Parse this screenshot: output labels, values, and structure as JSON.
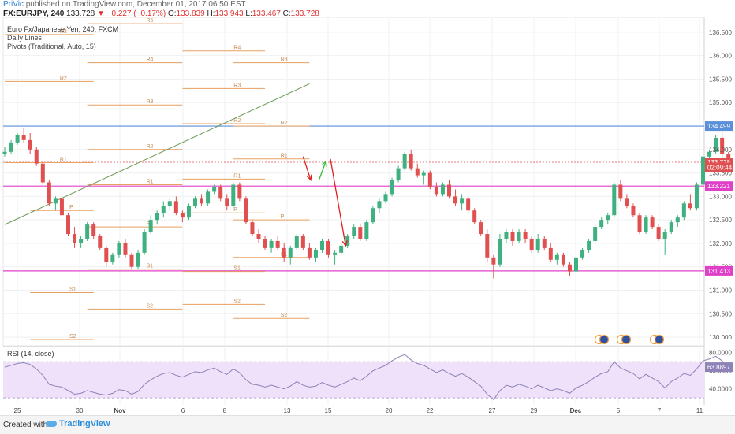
{
  "header": {
    "author": "PriVic",
    "published_text": "published on TradingView.com, December 01, 2017 06:50 EST"
  },
  "quote": {
    "symbol": "FX:EURJPY, 240",
    "last": "133.728",
    "change": "▼ −0.227 (−0.17%)",
    "open_label": "O:",
    "open": "133.839",
    "high_label": "H:",
    "high": "133.943",
    "low_label": "L:",
    "low": "133.467",
    "close_label": "C:",
    "close": "133.728"
  },
  "legend": {
    "title": "Euro Fx/Japanese Yen, 240, FXCM",
    "line2": "Daily Lines",
    "line3": "Pivots (Traditional, Auto, 15)"
  },
  "footer": {
    "created_with": "Created with",
    "brand": "TradingView"
  },
  "colors": {
    "up": "#3fb07f",
    "down": "#e05050",
    "pivot": "#e8a060",
    "trendline": "#6e9a55",
    "blue_level": "#5b8fd9",
    "magenta": "#e040c8",
    "red_arrow": "#dd2020",
    "green_arrow": "#33bb33",
    "rsi": "#8a82b4",
    "rsi_band": "#f0e1fb"
  },
  "chart_data": {
    "type": "candlestick",
    "title": "Euro Fx/Japanese Yen, 240, FXCM",
    "y_range": [
      129.85,
      136.75
    ],
    "y_ticks": [
      "136.500",
      "136.000",
      "135.500",
      "135.000",
      "134.500",
      "134.000",
      "133.500",
      "133.000",
      "132.500",
      "132.000",
      "131.500",
      "131.000",
      "130.500",
      "130.000"
    ],
    "x_tick_labels": [
      "25",
      "30",
      "Nov",
      "6",
      "8",
      "13",
      "15",
      "20",
      "22",
      "27",
      "29",
      "Dec",
      "5",
      "7",
      "11"
    ],
    "price_labels": [
      {
        "value": 134.499,
        "text": "134.499",
        "color": "#5b8fd9"
      },
      {
        "value": 133.728,
        "text": "133.728",
        "color": "#e05050"
      },
      {
        "value": 133.62,
        "text": "02:09:44",
        "color": "#e05050"
      },
      {
        "value": 133.221,
        "text": "133.221",
        "color": "#e040c8"
      },
      {
        "value": 131.413,
        "text": "131.413",
        "color": "#e040c8"
      }
    ],
    "horizontal_levels": [
      {
        "value": 134.499,
        "color": "#5b8fd9"
      },
      {
        "value": 133.221,
        "color": "#e040c8"
      },
      {
        "value": 131.413,
        "color": "#e040c8"
      },
      {
        "value": 133.728,
        "color": "#e05050"
      }
    ],
    "pivot_segments": [
      {
        "label": "R3",
        "value": 136.45,
        "x0": 0.0,
        "x1": 14.0
      },
      {
        "label": "R2",
        "value": 135.45,
        "x0": 0.0,
        "x1": 14.0
      },
      {
        "label": "R1",
        "value": 133.72,
        "x0": 0.0,
        "x1": 14.0
      },
      {
        "label": "P",
        "value": 132.7,
        "x0": 4.0,
        "x1": 14.0
      },
      {
        "label": "S1",
        "value": 130.95,
        "x0": 4.0,
        "x1": 14.0
      },
      {
        "label": "S2",
        "value": 129.95,
        "x0": 4.0,
        "x1": 14.0
      },
      {
        "label": "R5",
        "value": 136.68,
        "x0": 13.0,
        "x1": 28.0
      },
      {
        "label": "R4",
        "value": 135.85,
        "x0": 13.0,
        "x1": 28.0
      },
      {
        "label": "R3",
        "value": 134.95,
        "x0": 13.0,
        "x1": 28.0
      },
      {
        "label": "R2",
        "value": 134.0,
        "x0": 13.0,
        "x1": 28.0
      },
      {
        "label": "R1",
        "value": 133.25,
        "x0": 13.0,
        "x1": 28.0
      },
      {
        "label": "P",
        "value": 132.35,
        "x0": 13.0,
        "x1": 28.0
      },
      {
        "label": "S1",
        "value": 131.45,
        "x0": 13.0,
        "x1": 28.0
      },
      {
        "label": "S2",
        "value": 130.6,
        "x0": 13.0,
        "x1": 28.0
      },
      {
        "label": "R5",
        "value": 136.95,
        "x0": 28.0,
        "x1": 41.0
      },
      {
        "label": "R4",
        "value": 136.1,
        "x0": 28.0,
        "x1": 41.0
      },
      {
        "label": "R3",
        "value": 135.3,
        "x0": 28.0,
        "x1": 41.0
      },
      {
        "label": "R2",
        "value": 134.55,
        "x0": 28.0,
        "x1": 41.0
      },
      {
        "label": "R1",
        "value": 133.37,
        "x0": 28.0,
        "x1": 41.0
      },
      {
        "label": "P",
        "value": 132.65,
        "x0": 28.0,
        "x1": 41.0
      },
      {
        "label": "S1",
        "value": 131.4,
        "x0": 28.0,
        "x1": 41.0
      },
      {
        "label": "S2",
        "value": 130.7,
        "x0": 28.0,
        "x1": 41.0
      },
      {
        "label": "R3",
        "value": 135.85,
        "x0": 36.0,
        "x1": 48.0
      },
      {
        "label": "R2",
        "value": 134.5,
        "x0": 36.0,
        "x1": 48.0
      },
      {
        "label": "R1",
        "value": 133.8,
        "x0": 36.0,
        "x1": 48.0
      },
      {
        "label": "P",
        "value": 132.5,
        "x0": 36.0,
        "x1": 48.0
      },
      {
        "label": "S1",
        "value": 131.7,
        "x0": 36.0,
        "x1": 48.0
      },
      {
        "label": "S2",
        "value": 130.4,
        "x0": 36.0,
        "x1": 48.0
      }
    ],
    "trendline": {
      "x0": 0.0,
      "y0": 132.4,
      "x1": 48.0,
      "y1": 135.4
    },
    "arrows": [
      {
        "x0": 47.0,
        "y0": 133.85,
        "x1": 48.2,
        "y1": 133.35,
        "color": "#dd2020"
      },
      {
        "x0": 49.5,
        "y0": 133.35,
        "x1": 50.6,
        "y1": 133.75,
        "color": "#33bb33"
      },
      {
        "x0": 51.3,
        "y0": 133.8,
        "x1": 53.7,
        "y1": 131.95,
        "color": "#dd2020"
      }
    ],
    "candles": [
      [
        133.9,
        134.05,
        133.85,
        133.95
      ],
      [
        133.95,
        134.2,
        133.9,
        134.15
      ],
      [
        134.15,
        134.35,
        134.1,
        134.3
      ],
      [
        134.3,
        134.45,
        134.15,
        134.2
      ],
      [
        134.2,
        134.35,
        133.9,
        134.0
      ],
      [
        134.0,
        134.05,
        133.65,
        133.7
      ],
      [
        133.7,
        133.75,
        133.25,
        133.3
      ],
      [
        133.3,
        133.35,
        132.8,
        132.85
      ],
      [
        132.85,
        133.0,
        132.7,
        132.95
      ],
      [
        132.95,
        133.0,
        132.55,
        132.6
      ],
      [
        132.6,
        132.65,
        132.15,
        132.2
      ],
      [
        132.2,
        132.35,
        131.9,
        132.0
      ],
      [
        132.0,
        132.15,
        131.9,
        132.1
      ],
      [
        132.1,
        132.45,
        132.05,
        132.4
      ],
      [
        132.4,
        132.45,
        132.1,
        132.15
      ],
      [
        132.15,
        132.2,
        131.85,
        131.9
      ],
      [
        131.9,
        131.95,
        131.5,
        131.6
      ],
      [
        131.6,
        131.8,
        131.55,
        131.75
      ],
      [
        131.75,
        132.05,
        131.7,
        132.0
      ],
      [
        132.0,
        132.1,
        131.7,
        131.75
      ],
      [
        131.75,
        131.8,
        131.45,
        131.5
      ],
      [
        131.5,
        131.85,
        131.45,
        131.8
      ],
      [
        131.8,
        132.3,
        131.75,
        132.25
      ],
      [
        132.25,
        132.6,
        132.2,
        132.5
      ],
      [
        132.5,
        132.7,
        132.4,
        132.65
      ],
      [
        132.65,
        132.9,
        132.55,
        132.8
      ],
      [
        132.8,
        132.95,
        132.7,
        132.9
      ],
      [
        132.9,
        133.0,
        132.6,
        132.65
      ],
      [
        132.65,
        132.7,
        132.45,
        132.55
      ],
      [
        132.55,
        132.85,
        132.5,
        132.8
      ],
      [
        132.8,
        133.0,
        132.75,
        132.95
      ],
      [
        132.95,
        133.05,
        132.8,
        132.85
      ],
      [
        132.85,
        133.15,
        132.8,
        133.1
      ],
      [
        133.1,
        133.25,
        133.05,
        133.2
      ],
      [
        133.2,
        133.25,
        132.9,
        132.95
      ],
      [
        132.95,
        133.05,
        132.7,
        132.8
      ],
      [
        132.8,
        133.3,
        132.75,
        133.25
      ],
      [
        133.25,
        133.3,
        132.9,
        132.95
      ],
      [
        132.95,
        133.0,
        132.4,
        132.45
      ],
      [
        132.45,
        132.5,
        132.15,
        132.2
      ],
      [
        132.2,
        132.3,
        132.0,
        132.1
      ],
      [
        132.1,
        132.15,
        131.85,
        131.9
      ],
      [
        131.9,
        132.1,
        131.8,
        132.05
      ],
      [
        132.05,
        132.15,
        131.85,
        131.9
      ],
      [
        131.9,
        132.0,
        131.6,
        131.7
      ],
      [
        131.7,
        131.95,
        131.55,
        131.9
      ],
      [
        131.9,
        132.2,
        131.85,
        132.15
      ],
      [
        132.15,
        132.2,
        131.85,
        131.9
      ],
      [
        131.9,
        132.0,
        131.65,
        131.7
      ],
      [
        131.7,
        131.9,
        131.6,
        131.85
      ],
      [
        131.85,
        132.1,
        131.8,
        132.05
      ],
      [
        132.05,
        132.1,
        131.7,
        131.75
      ],
      [
        131.75,
        131.85,
        131.55,
        131.8
      ],
      [
        131.8,
        132.0,
        131.75,
        131.95
      ],
      [
        131.95,
        132.2,
        131.9,
        132.15
      ],
      [
        132.15,
        132.4,
        132.1,
        132.35
      ],
      [
        132.35,
        132.4,
        132.05,
        132.1
      ],
      [
        132.1,
        132.5,
        132.05,
        132.45
      ],
      [
        132.45,
        132.8,
        132.4,
        132.75
      ],
      [
        132.75,
        132.95,
        132.65,
        132.9
      ],
      [
        132.9,
        133.1,
        132.85,
        133.05
      ],
      [
        133.05,
        133.4,
        133.0,
        133.35
      ],
      [
        133.35,
        133.65,
        133.3,
        133.6
      ],
      [
        133.6,
        133.95,
        133.55,
        133.9
      ],
      [
        133.9,
        134.0,
        133.55,
        133.6
      ],
      [
        133.6,
        133.7,
        133.4,
        133.45
      ],
      [
        133.45,
        133.55,
        133.25,
        133.5
      ],
      [
        133.5,
        133.55,
        133.15,
        133.2
      ],
      [
        133.2,
        133.3,
        133.0,
        133.05
      ],
      [
        133.05,
        133.3,
        133.0,
        133.25
      ],
      [
        133.25,
        133.35,
        132.95,
        133.0
      ],
      [
        133.0,
        133.15,
        132.8,
        132.85
      ],
      [
        132.85,
        133.05,
        132.7,
        132.95
      ],
      [
        132.95,
        133.0,
        132.65,
        132.7
      ],
      [
        132.7,
        132.75,
        132.4,
        132.45
      ],
      [
        132.45,
        132.5,
        132.15,
        132.2
      ],
      [
        132.2,
        132.3,
        131.6,
        131.7
      ],
      [
        131.7,
        131.75,
        131.25,
        131.55
      ],
      [
        131.55,
        132.2,
        131.5,
        132.1
      ],
      [
        132.1,
        132.3,
        132.0,
        132.25
      ],
      [
        132.25,
        132.3,
        131.95,
        132.05
      ],
      [
        132.05,
        132.3,
        132.0,
        132.25
      ],
      [
        132.25,
        132.3,
        132.0,
        132.1
      ],
      [
        132.1,
        132.15,
        131.8,
        131.85
      ],
      [
        131.85,
        132.2,
        131.8,
        132.1
      ],
      [
        132.1,
        132.15,
        131.85,
        131.9
      ],
      [
        131.9,
        132.0,
        131.6,
        131.65
      ],
      [
        131.65,
        131.8,
        131.55,
        131.75
      ],
      [
        131.75,
        131.8,
        131.5,
        131.55
      ],
      [
        131.55,
        131.6,
        131.3,
        131.4
      ],
      [
        131.4,
        131.75,
        131.35,
        131.7
      ],
      [
        131.7,
        131.9,
        131.65,
        131.85
      ],
      [
        131.85,
        132.1,
        131.8,
        132.05
      ],
      [
        132.05,
        132.4,
        132.0,
        132.35
      ],
      [
        132.35,
        132.55,
        132.3,
        132.5
      ],
      [
        132.5,
        132.65,
        132.4,
        132.6
      ],
      [
        132.6,
        133.3,
        132.55,
        133.25
      ],
      [
        133.25,
        133.35,
        132.9,
        132.95
      ],
      [
        132.95,
        133.05,
        132.75,
        132.8
      ],
      [
        132.8,
        132.85,
        132.55,
        132.6
      ],
      [
        132.6,
        132.65,
        132.2,
        132.25
      ],
      [
        132.25,
        132.6,
        132.2,
        132.55
      ],
      [
        132.55,
        132.6,
        132.3,
        132.35
      ],
      [
        132.35,
        132.4,
        132.05,
        132.1
      ],
      [
        132.1,
        132.3,
        131.75,
        132.25
      ],
      [
        132.25,
        132.5,
        132.2,
        132.45
      ],
      [
        132.45,
        132.6,
        132.35,
        132.55
      ],
      [
        132.55,
        132.9,
        132.5,
        132.85
      ],
      [
        132.85,
        133.05,
        132.7,
        132.75
      ],
      [
        132.75,
        133.3,
        132.7,
        133.25
      ],
      [
        133.25,
        133.9,
        133.2,
        133.85
      ],
      [
        133.85,
        134.0,
        133.75,
        133.95
      ],
      [
        133.95,
        134.3,
        133.9,
        134.25
      ],
      [
        134.25,
        134.4,
        133.8,
        133.9
      ],
      [
        133.9,
        133.95,
        133.5,
        133.73
      ]
    ],
    "rsi": {
      "label": "RSI (14, close)",
      "y_range": [
        24,
        85
      ],
      "band": [
        30,
        70
      ],
      "y_ticks": [
        "80.0000",
        "60.0000",
        "40.0000"
      ],
      "current_label": "63.8897",
      "values": [
        64,
        66,
        68,
        69,
        67,
        62,
        55,
        45,
        43,
        42,
        38,
        34,
        35,
        38,
        36,
        34,
        33,
        35,
        39,
        38,
        34,
        37,
        45,
        50,
        54,
        57,
        58,
        55,
        53,
        56,
        59,
        58,
        61,
        63,
        59,
        56,
        62,
        58,
        50,
        45,
        44,
        42,
        44,
        42,
        40,
        43,
        48,
        44,
        42,
        43,
        47,
        44,
        42,
        45,
        48,
        52,
        49,
        54,
        60,
        63,
        66,
        71,
        75,
        78,
        72,
        68,
        66,
        62,
        58,
        61,
        57,
        54,
        57,
        53,
        48,
        43,
        34,
        28,
        38,
        44,
        42,
        45,
        43,
        40,
        44,
        41,
        38,
        40,
        38,
        35,
        41,
        44,
        48,
        53,
        57,
        59,
        70,
        63,
        60,
        57,
        51,
        56,
        52,
        48,
        41,
        48,
        52,
        57,
        55,
        62,
        71,
        73,
        76,
        71,
        64
      ]
    }
  }
}
